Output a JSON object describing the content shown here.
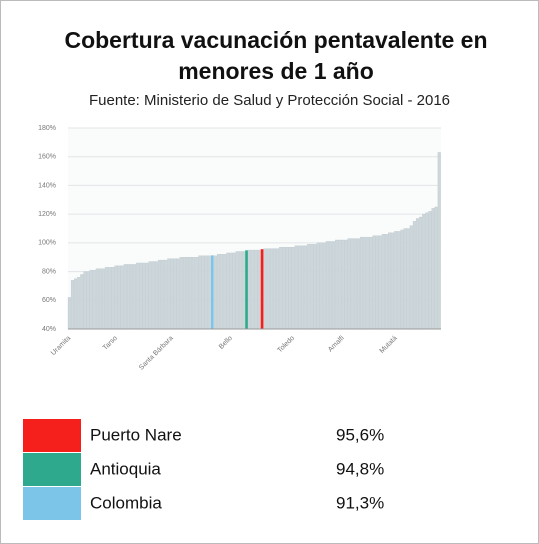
{
  "chart_data": {
    "type": "bar",
    "title": "Cobertura vacunación pentavalente en menores de 1 año",
    "subtitle": "Fuente: Ministerio de Salud y Protección Social - 2016",
    "categories": [
      "Uramita",
      null,
      null,
      null,
      null,
      null,
      null,
      null,
      null,
      null,
      null,
      null,
      null,
      null,
      null,
      "Tarso",
      null,
      null,
      null,
      null,
      null,
      null,
      null,
      null,
      null,
      null,
      null,
      null,
      null,
      null,
      null,
      null,
      null,
      "Santa Bárbara",
      null,
      null,
      null,
      null,
      null,
      null,
      null,
      null,
      null,
      null,
      null,
      null,
      null,
      null,
      null,
      null,
      null,
      null,
      "Bello",
      null,
      null,
      null,
      null,
      null,
      null,
      null,
      null,
      null,
      null,
      null,
      null,
      null,
      null,
      null,
      null,
      null,
      null,
      null,
      "Toledo",
      null,
      null,
      null,
      null,
      null,
      null,
      null,
      null,
      null,
      null,
      null,
      null,
      null,
      null,
      null,
      "Amalfi",
      null,
      null,
      null,
      null,
      null,
      null,
      null,
      null,
      null,
      null,
      null,
      null,
      null,
      null,
      null,
      null,
      "Mutatá",
      null,
      null,
      null,
      null,
      null,
      null,
      null,
      null,
      null,
      null,
      null,
      null,
      null,
      null
    ],
    "values": [
      62,
      74,
      75,
      76,
      78,
      80,
      80,
      81,
      81,
      82,
      82,
      82,
      83,
      83,
      83,
      84,
      84,
      84,
      85,
      85,
      85,
      85,
      86,
      86,
      86,
      86,
      87,
      87,
      87,
      88,
      88,
      88,
      89,
      89,
      89,
      89,
      90,
      90,
      90,
      90,
      90,
      90,
      91,
      91,
      91,
      91,
      91.3,
      91,
      92,
      92,
      92,
      93,
      93,
      93,
      94,
      94,
      94,
      94.8,
      95,
      95,
      95,
      95,
      95.6,
      96,
      96,
      96,
      96,
      96,
      97,
      97,
      97,
      97,
      97,
      98,
      98,
      98,
      98,
      99,
      99,
      99,
      100,
      100,
      100,
      101,
      101,
      101,
      102,
      102,
      102,
      102,
      103,
      103,
      103,
      103,
      104,
      104,
      104,
      104,
      105,
      105,
      105,
      106,
      106,
      107,
      107,
      108,
      108,
      109,
      110,
      110,
      112,
      115,
      117,
      118,
      120,
      121,
      122,
      124,
      125,
      163
    ],
    "color": "#cdd7db",
    "highlight_colors": {
      "46": "#7cc4e8",
      "57": "#2fa98e",
      "62": "#f5201b"
    },
    "ylim": [
      40,
      180
    ],
    "yticks": [
      {
        "value": 40,
        "label": "40%"
      },
      {
        "value": 60,
        "label": "60%"
      },
      {
        "value": 80,
        "label": "80%"
      },
      {
        "value": 100,
        "label": "100%"
      },
      {
        "value": 120,
        "label": "120%"
      },
      {
        "value": 140,
        "label": "140%"
      },
      {
        "value": 160,
        "label": "160%"
      },
      {
        "value": 180,
        "label": "180%"
      }
    ],
    "grid": true,
    "legend": {
      "names": [
        "Puerto Nare",
        "Antioquia",
        "Colombia"
      ],
      "colors": [
        "#f5201b",
        "#2fa98e",
        "#7cc4e8"
      ],
      "values": [
        95.6,
        94.8,
        91.3
      ],
      "value_labels": [
        "95,6%",
        "94,8%",
        "91,3%"
      ]
    }
  }
}
